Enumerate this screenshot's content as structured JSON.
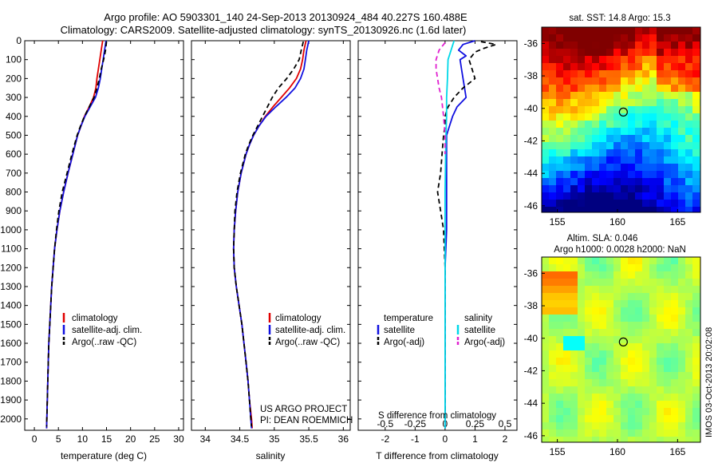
{
  "title": {
    "line1": "Argo profile: AO 5903301_140 24-Sep-2013 20130924_484 40.227S 160.488E",
    "line2": "Climatology: CARS2009. Satellite-adjusted climatology: synTS_20130926.nc (1.6d later)"
  },
  "watermark": "IMOS 03-Oct-2013 20:02:08",
  "colors": {
    "climatology": "#e00000",
    "satellite": "#1010e0",
    "argo": "#000000",
    "sat_salinity": "#00d8e8",
    "argo_salinity": "#e020d0"
  },
  "chart_data": [
    {
      "type": "line",
      "xlabel": "temperature (deg C)",
      "xticks": [
        "0",
        "5",
        "10",
        "15",
        "20",
        "25",
        "30"
      ],
      "yticks": [
        "0",
        "100",
        "200",
        "300",
        "400",
        "500",
        "600",
        "700",
        "800",
        "900",
        "1000",
        "1100",
        "1200",
        "1300",
        "1400",
        "1500",
        "1600",
        "1700",
        "1800",
        "1900",
        "2000"
      ],
      "xlim": [
        -2,
        31
      ],
      "ylim": [
        2060,
        0
      ],
      "legend": [
        "climatology",
        "satellite-adj. clim.",
        "Argo(..raw -QC)"
      ],
      "series": [
        {
          "name": "climatology",
          "color": "#e00000",
          "dash": "",
          "y": [
            0,
            50,
            100,
            150,
            200,
            250,
            300,
            350,
            400,
            450,
            500,
            600,
            700,
            800,
            900,
            1000,
            1100,
            1200,
            1300,
            1400,
            1500,
            1600,
            1700,
            1800,
            1900,
            2000,
            2050
          ],
          "values": [
            14.2,
            13.9,
            13.6,
            13.3,
            13.0,
            12.8,
            12.3,
            11.4,
            10.4,
            9.7,
            9.0,
            8.0,
            7.0,
            6.1,
            5.3,
            4.7,
            4.2,
            3.9,
            3.6,
            3.4,
            3.2,
            3.0,
            2.9,
            2.8,
            2.7,
            2.6,
            2.55
          ]
        },
        {
          "name": "satellite-adj. clim.",
          "color": "#1010e0",
          "dash": "",
          "y": [
            0,
            50,
            100,
            150,
            200,
            250,
            300,
            350,
            400,
            450,
            500,
            600,
            700,
            800,
            900,
            1000,
            1100,
            1200,
            1300,
            1400,
            1500,
            1600,
            1700,
            1800,
            1900,
            2000,
            2050
          ],
          "values": [
            14.9,
            14.6,
            14.3,
            14.0,
            13.7,
            13.3,
            12.7,
            11.6,
            10.5,
            9.7,
            9.0,
            8.0,
            7.0,
            6.1,
            5.3,
            4.7,
            4.2,
            3.9,
            3.6,
            3.4,
            3.2,
            3.0,
            2.9,
            2.8,
            2.7,
            2.6,
            2.55
          ]
        },
        {
          "name": "Argo(..raw -QC)",
          "color": "#000000",
          "dash": "6,4",
          "y": [
            5,
            50,
            100,
            150,
            200,
            250,
            300,
            350,
            400,
            450,
            500,
            600,
            700,
            800,
            900,
            1000,
            1100,
            1200,
            1300,
            1400,
            1500,
            1600,
            1700,
            1800,
            1900,
            2000,
            2040
          ],
          "values": [
            15.0,
            14.8,
            14.4,
            13.9,
            13.5,
            13.0,
            12.4,
            11.4,
            10.4,
            9.6,
            8.9,
            7.8,
            6.8,
            5.8,
            5.1,
            4.6,
            4.2,
            3.9,
            3.6,
            3.4,
            3.2,
            3.0,
            2.9,
            2.8,
            2.7,
            2.6,
            2.55
          ]
        }
      ]
    },
    {
      "type": "line",
      "xlabel": "salinity",
      "xticks": [
        "34",
        "34.5",
        "35",
        "35.5",
        "36"
      ],
      "xlim": [
        33.8,
        36.1
      ],
      "ylim": [
        2060,
        0
      ],
      "legend": [
        "climatology",
        "satellite-adj. clim.",
        "Argo(..raw -QC)"
      ],
      "annotation": [
        "US ARGO PROJECT",
        "PI: DEAN ROEMMICH"
      ],
      "series": [
        {
          "name": "climatology",
          "color": "#e00000",
          "dash": "",
          "y": [
            0,
            50,
            100,
            150,
            200,
            250,
            300,
            350,
            400,
            450,
            500,
            550,
            600,
            700,
            800,
            900,
            1000,
            1100,
            1200,
            1300,
            1400,
            1500,
            1600,
            1700,
            1800,
            1900,
            2000,
            2050
          ],
          "values": [
            35.46,
            35.43,
            35.41,
            35.38,
            35.32,
            35.22,
            35.1,
            34.98,
            34.87,
            34.78,
            34.7,
            34.64,
            34.59,
            34.52,
            34.47,
            34.44,
            34.42,
            34.41,
            34.42,
            34.45,
            34.49,
            34.53,
            34.56,
            34.59,
            34.62,
            34.64,
            34.67,
            34.68
          ]
        },
        {
          "name": "satellite-adj. clim.",
          "color": "#1010e0",
          "dash": "",
          "y": [
            0,
            50,
            100,
            150,
            200,
            250,
            300,
            350,
            400,
            450,
            500,
            550,
            600,
            700,
            800,
            900,
            1000,
            1100,
            1200,
            1300,
            1400,
            1500,
            1600,
            1700,
            1800,
            1900,
            2000,
            2050
          ],
          "values": [
            35.5,
            35.47,
            35.45,
            35.43,
            35.38,
            35.3,
            35.17,
            35.02,
            34.88,
            34.78,
            34.7,
            34.64,
            34.59,
            34.52,
            34.47,
            34.44,
            34.42,
            34.41,
            34.42,
            34.45,
            34.49,
            34.53,
            34.56,
            34.59,
            34.62,
            34.64,
            34.66,
            34.67
          ]
        },
        {
          "name": "Argo(..raw -QC)",
          "color": "#000000",
          "dash": "6,4",
          "y": [
            5,
            50,
            100,
            150,
            200,
            250,
            300,
            350,
            400,
            450,
            500,
            550,
            600,
            700,
            800,
            900,
            1000,
            1100,
            1200,
            1300,
            1400,
            1500,
            1600,
            1700,
            1800,
            1900,
            2000,
            2040
          ],
          "values": [
            35.42,
            35.39,
            35.36,
            35.28,
            35.18,
            35.06,
            34.97,
            34.9,
            34.83,
            34.76,
            34.69,
            34.63,
            34.58,
            34.51,
            34.46,
            34.43,
            34.42,
            34.41,
            34.42,
            34.45,
            34.49,
            34.53,
            34.56,
            34.59,
            34.62,
            34.64,
            34.66,
            34.67
          ]
        }
      ]
    },
    {
      "type": "line",
      "xlabel": "T difference from climatology",
      "top_label": "S difference from climatology",
      "xticks": [
        "-2",
        "-1",
        "0",
        "1",
        "2"
      ],
      "sticks": [
        "-0.5",
        "-0.25",
        "0",
        "0.25",
        "0.5"
      ],
      "xlim": [
        -2.9,
        2.4
      ],
      "ylim": [
        2060,
        0
      ],
      "legend_temperature": {
        "heading": "temperature",
        "items": [
          "satellite",
          "Argo(-adj)"
        ]
      },
      "legend_salinity": {
        "heading": "salinity",
        "items": [
          "satellite",
          "Argo(-adj)"
        ]
      },
      "series": [
        {
          "name": "satellite",
          "color": "#1010e0",
          "dash": "",
          "y": [
            0,
            20,
            50,
            80,
            100,
            150,
            200,
            250,
            300,
            350,
            400,
            450,
            500,
            600,
            700,
            800,
            900,
            1000,
            1200,
            1500,
            2000,
            2050
          ],
          "values": [
            1.0,
            0.6,
            0.45,
            0.7,
            0.5,
            0.55,
            0.6,
            0.65,
            0.7,
            0.4,
            0.25,
            0.15,
            0.05,
            0.05,
            0.05,
            0.05,
            0.05,
            0.05,
            0.0,
            0.0,
            0.0,
            0.0
          ]
        },
        {
          "name": "Argo(-adj)",
          "color": "#000000",
          "dash": "6,4",
          "y": [
            5,
            20,
            40,
            60,
            80,
            100,
            150,
            200,
            250,
            300,
            350,
            400,
            450,
            500,
            600,
            700,
            800,
            850,
            900,
            1000,
            1200,
            1500,
            2000
          ],
          "values": [
            1.2,
            1.7,
            1.3,
            1.0,
            0.9,
            0.8,
            0.9,
            1.0,
            0.6,
            0.3,
            0.1,
            0.0,
            0.0,
            -0.05,
            -0.1,
            -0.15,
            -0.25,
            -0.2,
            -0.15,
            -0.05,
            0.0,
            0.0,
            0.0
          ]
        },
        {
          "name": "satellite",
          "color": "#00d8e8",
          "dash": "",
          "y": [
            0,
            50,
            100,
            200,
            300,
            400,
            500,
            600,
            800,
            1000,
            1200,
            1500,
            2000,
            2050
          ],
          "values": [
            0.3,
            0.2,
            0.1,
            0.08,
            0.05,
            0.05,
            0.03,
            0.02,
            0.0,
            0.0,
            0.0,
            0.0,
            0.0,
            0.0
          ]
        },
        {
          "name": "Argo(-adj)",
          "color": "#e020d0",
          "dash": "6,4",
          "y": [
            10,
            50,
            100,
            150,
            200,
            250,
            300,
            400,
            500,
            600
          ],
          "values": [
            0.0,
            -0.2,
            -0.3,
            -0.3,
            -0.25,
            -0.2,
            -0.12,
            -0.05,
            0.0,
            0.0
          ]
        }
      ]
    }
  ],
  "maps": [
    {
      "title": "sat. SST: 14.8 Argo: 15.3",
      "yticks": [
        "-36",
        "-38",
        "-40",
        "-42",
        "-44",
        "-46"
      ],
      "xticks": [
        "155",
        "160",
        "165"
      ],
      "marker": {
        "lon": 160.488,
        "lat": -40.227
      }
    },
    {
      "title1": "Altim. SLA: 0.046",
      "title2": "Argo h1000: 0.0028 h2000: NaN",
      "yticks": [
        "-36",
        "-38",
        "-40",
        "-42",
        "-44",
        "-46"
      ],
      "xticks": [
        "155",
        "160",
        "165"
      ],
      "marker": {
        "lon": 160.488,
        "lat": -40.227
      }
    }
  ]
}
